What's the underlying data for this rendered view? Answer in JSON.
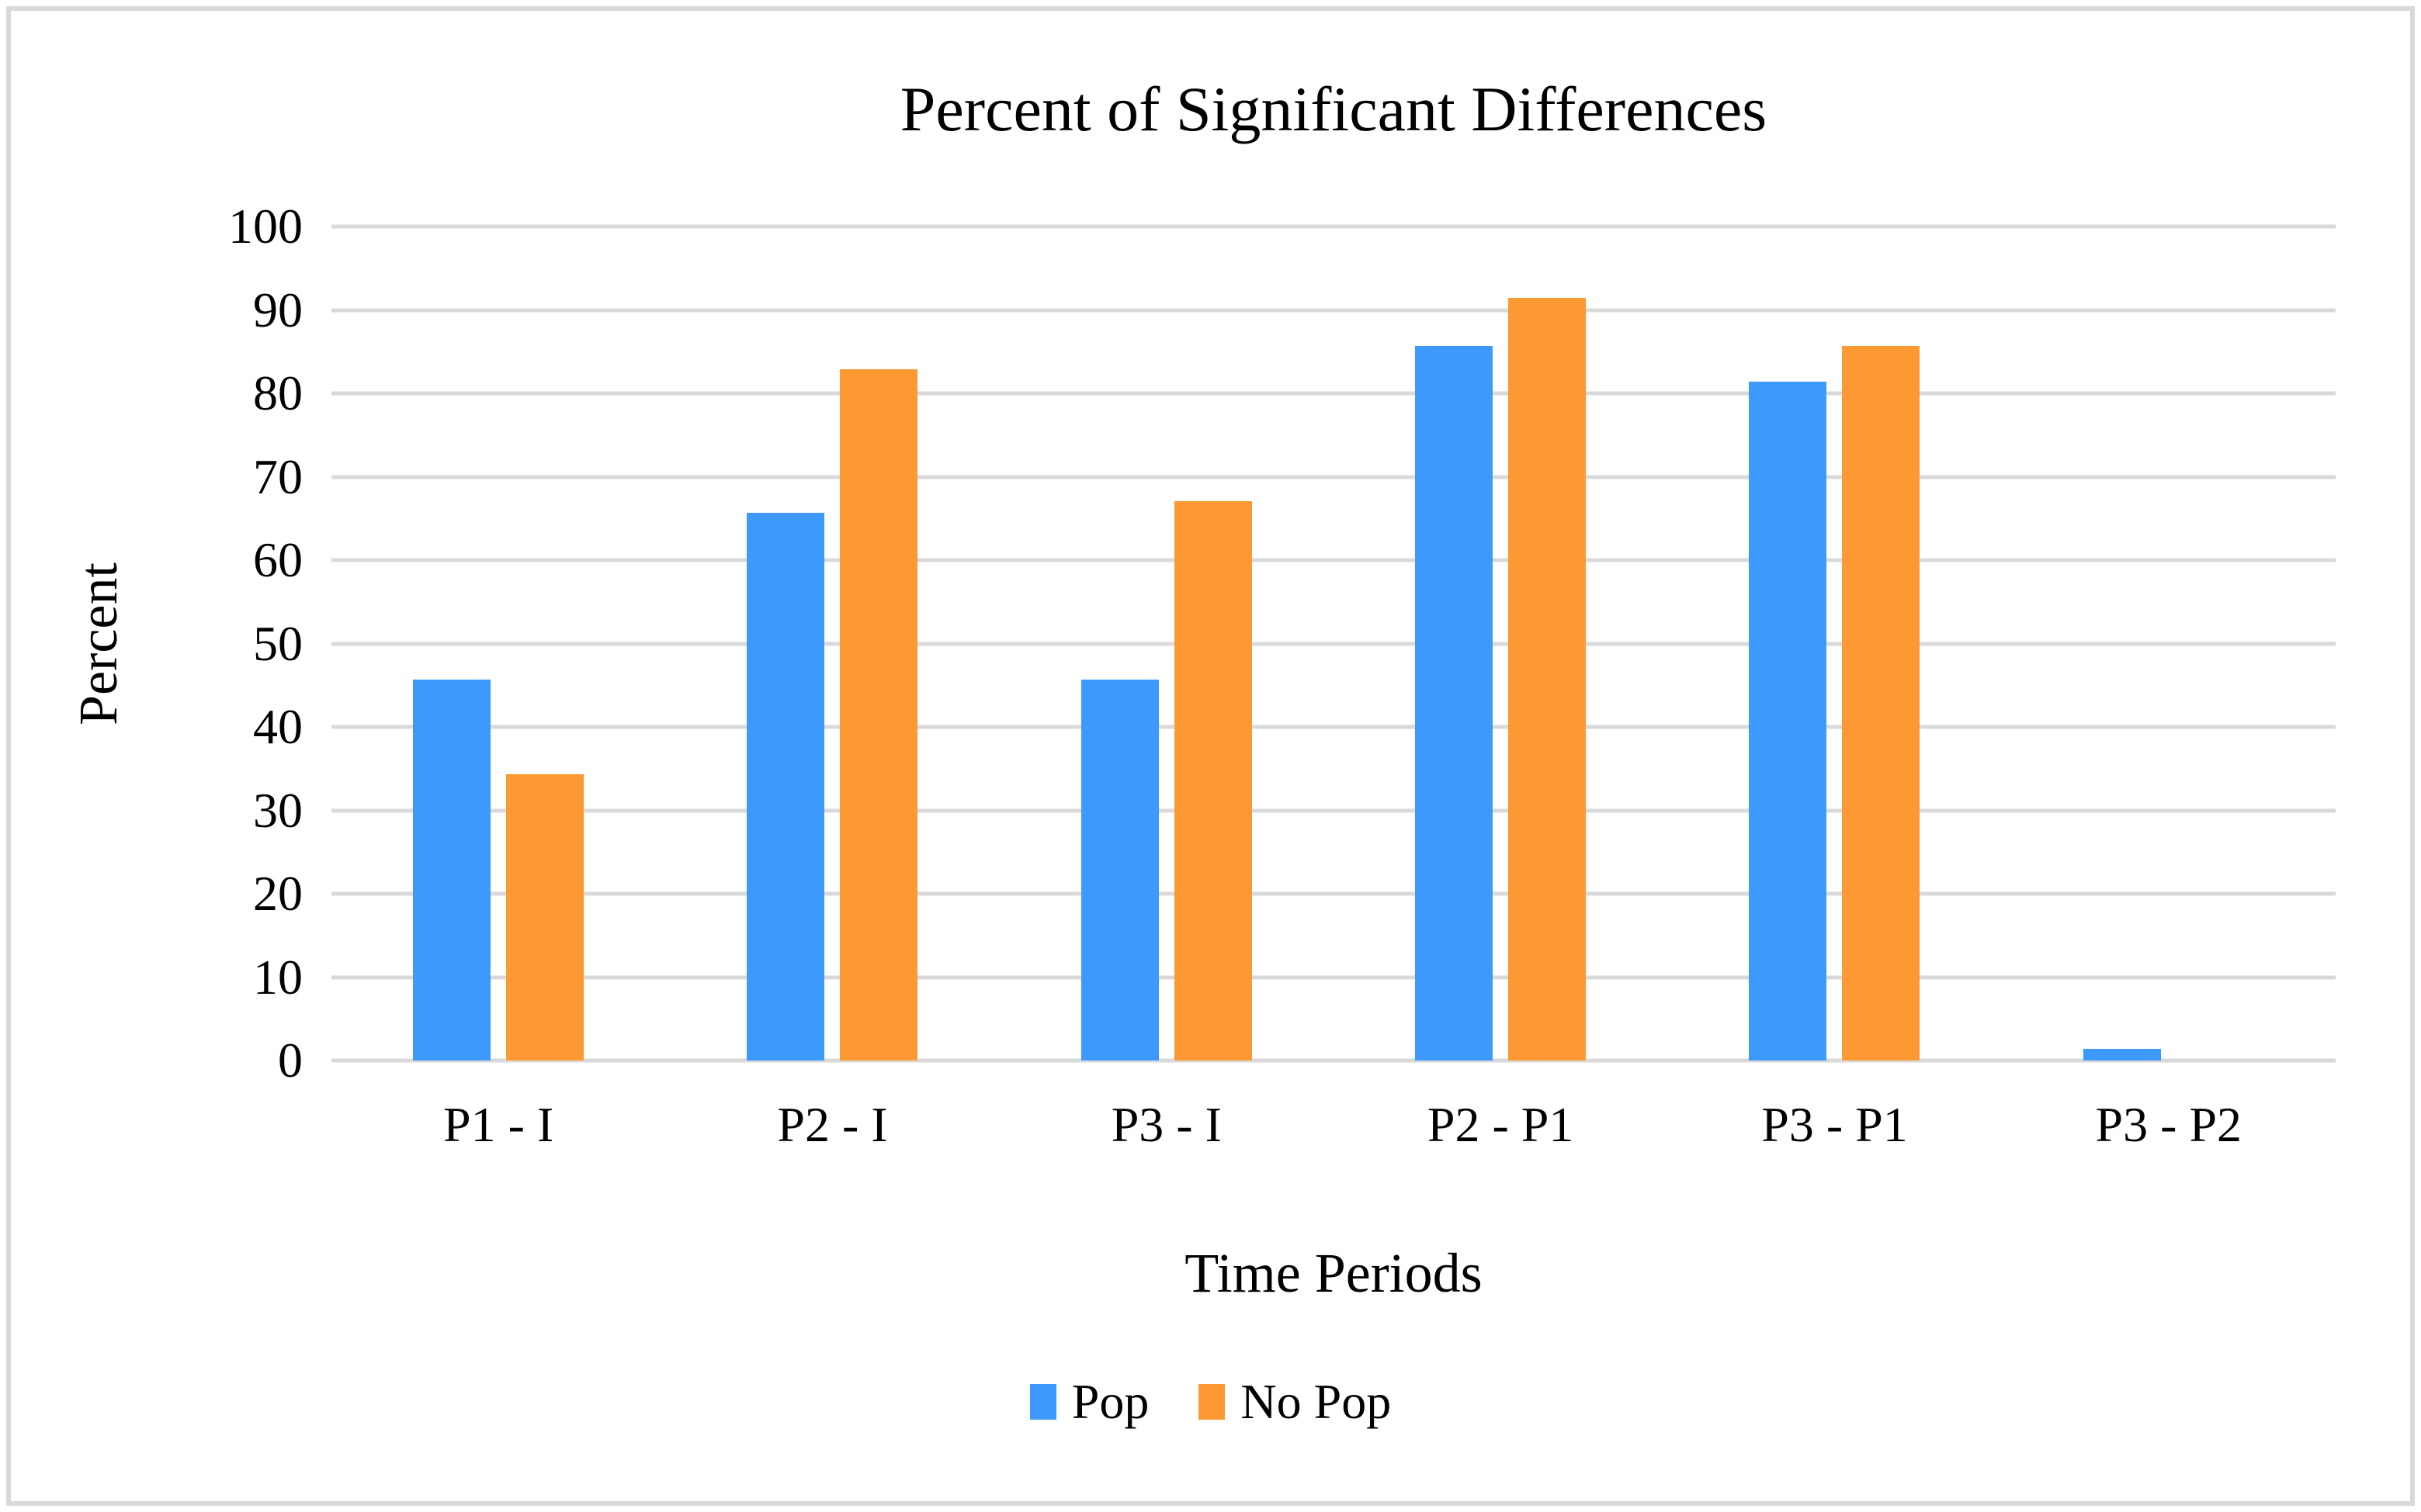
{
  "figure": {
    "background": "#FFFFFF",
    "border_color": "#D9D9D9"
  },
  "chart_data": {
    "type": "bar",
    "title": "Percent of Significant Differences",
    "xlabel": "Time Periods",
    "ylabel": "Percent",
    "categories": [
      "P1 - I",
      "P2 - I",
      "P3 - I",
      "P2 - P1",
      "P3 - P1",
      "P3 - P2"
    ],
    "series": [
      {
        "name": "Pop",
        "color": "#3D99FC",
        "values": [
          45.7,
          65.7,
          45.7,
          85.7,
          81.4,
          1.4
        ]
      },
      {
        "name": "No Pop",
        "color": "#FC9933",
        "values": [
          34.3,
          82.9,
          67.1,
          91.4,
          85.7,
          0
        ]
      }
    ],
    "ylim": [
      0,
      100
    ],
    "yticks": [
      0,
      10,
      20,
      30,
      40,
      50,
      60,
      70,
      80,
      90,
      100
    ],
    "grid": true,
    "gridline_color": "#D9D9D9",
    "legend_position": "bottom",
    "legend": [
      "Pop",
      "No Pop"
    ]
  }
}
